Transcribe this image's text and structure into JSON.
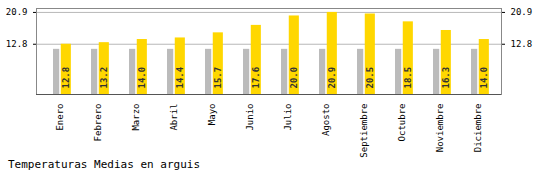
{
  "chart_data": {
    "type": "bar",
    "title": "Temperaturas Medias en arguis",
    "categories": [
      "Enero",
      "Febrero",
      "Marzo",
      "Abril",
      "Mayo",
      "Junio",
      "Julio",
      "Agosto",
      "Septiembre",
      "Octubre",
      "Noviembre",
      "Diciembre"
    ],
    "series": [
      {
        "color": "#BBBBBB",
        "values": [
          11.5,
          11.5,
          11.5,
          11.5,
          11.5,
          11.5,
          11.5,
          11.5,
          11.5,
          11.5,
          11.5,
          11.5
        ]
      },
      {
        "color": "#FFD700",
        "values": [
          12.8,
          13.2,
          14.0,
          14.4,
          15.7,
          17.6,
          20.0,
          20.9,
          20.5,
          18.5,
          16.3,
          14.0
        ],
        "value_labels": [
          "12.8",
          "13.2",
          "14.0",
          "14.4",
          "15.7",
          "17.6",
          "20.0",
          "20.9",
          "20.5",
          "18.5",
          "16.3",
          "14.0"
        ],
        "data_labels": true
      }
    ],
    "ylim": [
      0,
      21.9
    ],
    "yticks": [
      12.8,
      20.9
    ],
    "grid": true
  }
}
